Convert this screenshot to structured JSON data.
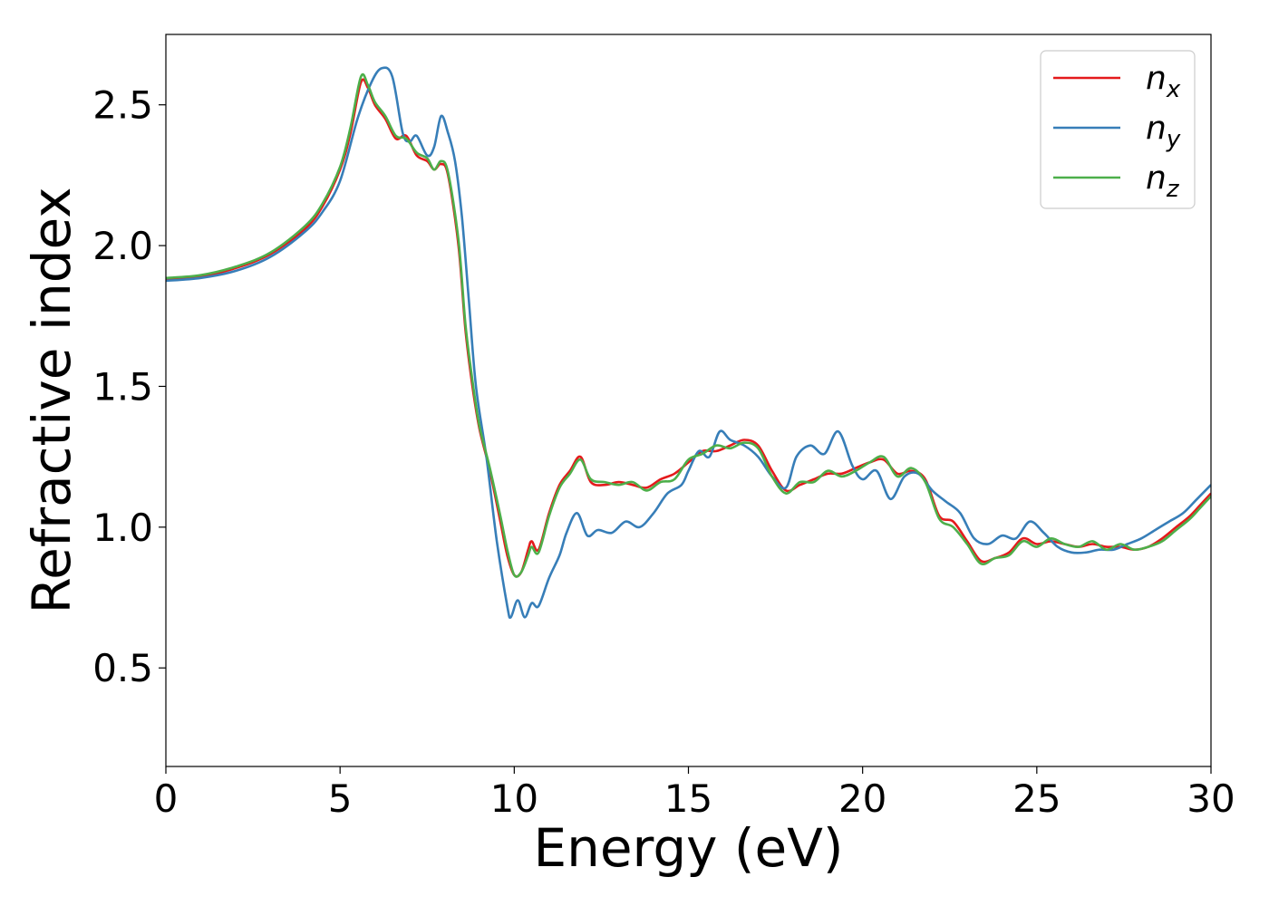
{
  "chart_data": {
    "type": "line",
    "title": "",
    "xlabel": "Energy (eV)",
    "ylabel": "Refractive index",
    "xlim": [
      0,
      30
    ],
    "ylim": [
      0.15,
      2.75
    ],
    "xticks": [
      0,
      5,
      10,
      15,
      20,
      25,
      30
    ],
    "xtick_labels": [
      "0",
      "5",
      "10",
      "15",
      "20",
      "25",
      "30"
    ],
    "yticks": [
      0.5,
      1.0,
      1.5,
      2.0,
      2.5
    ],
    "ytick_labels": [
      "0.5",
      "1.0",
      "1.5",
      "2.0",
      "2.5"
    ],
    "grid": false,
    "legend_position": "top-right",
    "series": [
      {
        "name": "n_x",
        "label_base": "n",
        "label_sub": "x",
        "color": "#e41a1c",
        "points": [
          [
            0,
            1.88
          ],
          [
            1,
            1.89
          ],
          [
            2,
            1.92
          ],
          [
            3,
            1.97
          ],
          [
            4,
            2.06
          ],
          [
            4.5,
            2.14
          ],
          [
            5,
            2.27
          ],
          [
            5.3,
            2.4
          ],
          [
            5.6,
            2.58
          ],
          [
            5.8,
            2.56
          ],
          [
            6,
            2.5
          ],
          [
            6.3,
            2.45
          ],
          [
            6.6,
            2.38
          ],
          [
            6.9,
            2.39
          ],
          [
            7.2,
            2.32
          ],
          [
            7.5,
            2.3
          ],
          [
            7.7,
            2.27
          ],
          [
            7.9,
            2.29
          ],
          [
            8.1,
            2.25
          ],
          [
            8.4,
            2.0
          ],
          [
            8.6,
            1.7
          ],
          [
            8.8,
            1.5
          ],
          [
            9.0,
            1.35
          ],
          [
            9.3,
            1.2
          ],
          [
            9.6,
            1.02
          ],
          [
            9.8,
            0.9
          ],
          [
            10.0,
            0.83
          ],
          [
            10.2,
            0.84
          ],
          [
            10.4,
            0.92
          ],
          [
            10.5,
            0.95
          ],
          [
            10.7,
            0.92
          ],
          [
            11.0,
            1.05
          ],
          [
            11.3,
            1.15
          ],
          [
            11.6,
            1.2
          ],
          [
            11.9,
            1.25
          ],
          [
            12.2,
            1.16
          ],
          [
            12.6,
            1.15
          ],
          [
            13.0,
            1.16
          ],
          [
            13.4,
            1.15
          ],
          [
            13.8,
            1.14
          ],
          [
            14.2,
            1.17
          ],
          [
            14.6,
            1.19
          ],
          [
            15.0,
            1.23
          ],
          [
            15.4,
            1.27
          ],
          [
            15.8,
            1.27
          ],
          [
            16.2,
            1.29
          ],
          [
            16.6,
            1.31
          ],
          [
            17.0,
            1.29
          ],
          [
            17.4,
            1.2
          ],
          [
            17.8,
            1.13
          ],
          [
            18.2,
            1.15
          ],
          [
            18.6,
            1.17
          ],
          [
            19.0,
            1.19
          ],
          [
            19.4,
            1.19
          ],
          [
            19.8,
            1.21
          ],
          [
            20.2,
            1.23
          ],
          [
            20.6,
            1.24
          ],
          [
            21.0,
            1.19
          ],
          [
            21.4,
            1.2
          ],
          [
            21.8,
            1.17
          ],
          [
            22.2,
            1.04
          ],
          [
            22.6,
            1.02
          ],
          [
            23.0,
            0.95
          ],
          [
            23.4,
            0.88
          ],
          [
            23.8,
            0.89
          ],
          [
            24.2,
            0.91
          ],
          [
            24.6,
            0.96
          ],
          [
            25.0,
            0.94
          ],
          [
            25.4,
            0.95
          ],
          [
            25.8,
            0.94
          ],
          [
            26.2,
            0.93
          ],
          [
            26.6,
            0.94
          ],
          [
            27.0,
            0.93
          ],
          [
            27.4,
            0.93
          ],
          [
            27.8,
            0.92
          ],
          [
            28.2,
            0.93
          ],
          [
            28.6,
            0.96
          ],
          [
            29.0,
            1.0
          ],
          [
            29.4,
            1.04
          ],
          [
            29.7,
            1.08
          ],
          [
            30.0,
            1.12
          ]
        ]
      },
      {
        "name": "n_y",
        "label_base": "n",
        "label_sub": "y",
        "color": "#377eb8",
        "points": [
          [
            0,
            1.875
          ],
          [
            1,
            1.885
          ],
          [
            2,
            1.91
          ],
          [
            3,
            1.96
          ],
          [
            4,
            2.05
          ],
          [
            4.5,
            2.12
          ],
          [
            5,
            2.23
          ],
          [
            5.5,
            2.45
          ],
          [
            5.9,
            2.58
          ],
          [
            6.2,
            2.63
          ],
          [
            6.5,
            2.6
          ],
          [
            6.8,
            2.4
          ],
          [
            7.0,
            2.37
          ],
          [
            7.2,
            2.39
          ],
          [
            7.5,
            2.32
          ],
          [
            7.7,
            2.35
          ],
          [
            7.9,
            2.46
          ],
          [
            8.1,
            2.4
          ],
          [
            8.3,
            2.3
          ],
          [
            8.5,
            2.1
          ],
          [
            8.7,
            1.8
          ],
          [
            8.9,
            1.5
          ],
          [
            9.2,
            1.25
          ],
          [
            9.5,
            0.95
          ],
          [
            9.8,
            0.72
          ],
          [
            9.9,
            0.68
          ],
          [
            10.1,
            0.74
          ],
          [
            10.3,
            0.68
          ],
          [
            10.5,
            0.73
          ],
          [
            10.7,
            0.72
          ],
          [
            11.0,
            0.82
          ],
          [
            11.3,
            0.9
          ],
          [
            11.5,
            0.98
          ],
          [
            11.8,
            1.05
          ],
          [
            12.1,
            0.97
          ],
          [
            12.4,
            0.99
          ],
          [
            12.8,
            0.98
          ],
          [
            13.2,
            1.02
          ],
          [
            13.6,
            1.0
          ],
          [
            14.0,
            1.05
          ],
          [
            14.4,
            1.12
          ],
          [
            14.8,
            1.15
          ],
          [
            15.0,
            1.2
          ],
          [
            15.3,
            1.27
          ],
          [
            15.6,
            1.25
          ],
          [
            15.9,
            1.34
          ],
          [
            16.2,
            1.31
          ],
          [
            16.6,
            1.29
          ],
          [
            17.0,
            1.25
          ],
          [
            17.4,
            1.18
          ],
          [
            17.8,
            1.14
          ],
          [
            18.1,
            1.25
          ],
          [
            18.5,
            1.29
          ],
          [
            18.9,
            1.26
          ],
          [
            19.3,
            1.34
          ],
          [
            19.7,
            1.22
          ],
          [
            20.0,
            1.17
          ],
          [
            20.4,
            1.2
          ],
          [
            20.8,
            1.1
          ],
          [
            21.2,
            1.18
          ],
          [
            21.6,
            1.19
          ],
          [
            22.0,
            1.13
          ],
          [
            22.4,
            1.09
          ],
          [
            22.8,
            1.05
          ],
          [
            23.2,
            0.96
          ],
          [
            23.6,
            0.94
          ],
          [
            24.0,
            0.97
          ],
          [
            24.4,
            0.96
          ],
          [
            24.8,
            1.02
          ],
          [
            25.2,
            0.98
          ],
          [
            25.6,
            0.93
          ],
          [
            26.0,
            0.91
          ],
          [
            26.4,
            0.91
          ],
          [
            26.8,
            0.92
          ],
          [
            27.2,
            0.92
          ],
          [
            27.6,
            0.94
          ],
          [
            28.0,
            0.96
          ],
          [
            28.4,
            0.99
          ],
          [
            28.8,
            1.02
          ],
          [
            29.2,
            1.05
          ],
          [
            29.6,
            1.1
          ],
          [
            30.0,
            1.15
          ]
        ]
      },
      {
        "name": "n_z",
        "label_base": "n",
        "label_sub": "z",
        "color": "#4daf4a",
        "points": [
          [
            0,
            1.885
          ],
          [
            1,
            1.895
          ],
          [
            2,
            1.925
          ],
          [
            3,
            1.975
          ],
          [
            4,
            2.07
          ],
          [
            4.5,
            2.15
          ],
          [
            5,
            2.28
          ],
          [
            5.3,
            2.42
          ],
          [
            5.6,
            2.6
          ],
          [
            5.8,
            2.57
          ],
          [
            6,
            2.51
          ],
          [
            6.3,
            2.46
          ],
          [
            6.6,
            2.39
          ],
          [
            6.9,
            2.38
          ],
          [
            7.2,
            2.33
          ],
          [
            7.5,
            2.31
          ],
          [
            7.7,
            2.27
          ],
          [
            7.9,
            2.3
          ],
          [
            8.1,
            2.26
          ],
          [
            8.4,
            2.02
          ],
          [
            8.6,
            1.72
          ],
          [
            8.8,
            1.52
          ],
          [
            9.0,
            1.36
          ],
          [
            9.3,
            1.21
          ],
          [
            9.6,
            1.04
          ],
          [
            9.8,
            0.92
          ],
          [
            10.0,
            0.83
          ],
          [
            10.2,
            0.84
          ],
          [
            10.4,
            0.9
          ],
          [
            10.5,
            0.93
          ],
          [
            10.7,
            0.91
          ],
          [
            11.0,
            1.04
          ],
          [
            11.3,
            1.14
          ],
          [
            11.6,
            1.19
          ],
          [
            11.9,
            1.24
          ],
          [
            12.2,
            1.17
          ],
          [
            12.6,
            1.16
          ],
          [
            13.0,
            1.15
          ],
          [
            13.4,
            1.16
          ],
          [
            13.8,
            1.13
          ],
          [
            14.2,
            1.16
          ],
          [
            14.6,
            1.17
          ],
          [
            15.0,
            1.24
          ],
          [
            15.4,
            1.26
          ],
          [
            15.8,
            1.29
          ],
          [
            16.2,
            1.28
          ],
          [
            16.6,
            1.3
          ],
          [
            17.0,
            1.28
          ],
          [
            17.4,
            1.18
          ],
          [
            17.8,
            1.12
          ],
          [
            18.2,
            1.16
          ],
          [
            18.6,
            1.16
          ],
          [
            19.0,
            1.2
          ],
          [
            19.4,
            1.18
          ],
          [
            19.8,
            1.2
          ],
          [
            20.2,
            1.23
          ],
          [
            20.6,
            1.25
          ],
          [
            21.0,
            1.18
          ],
          [
            21.4,
            1.21
          ],
          [
            21.8,
            1.16
          ],
          [
            22.2,
            1.03
          ],
          [
            22.6,
            1.0
          ],
          [
            23.0,
            0.94
          ],
          [
            23.4,
            0.87
          ],
          [
            23.8,
            0.89
          ],
          [
            24.2,
            0.9
          ],
          [
            24.6,
            0.95
          ],
          [
            25.0,
            0.93
          ],
          [
            25.4,
            0.96
          ],
          [
            25.8,
            0.94
          ],
          [
            26.2,
            0.93
          ],
          [
            26.6,
            0.95
          ],
          [
            27.0,
            0.92
          ],
          [
            27.4,
            0.94
          ],
          [
            27.8,
            0.92
          ],
          [
            28.2,
            0.93
          ],
          [
            28.6,
            0.95
          ],
          [
            29.0,
            0.99
          ],
          [
            29.4,
            1.03
          ],
          [
            29.7,
            1.07
          ],
          [
            30.0,
            1.11
          ]
        ]
      }
    ]
  }
}
